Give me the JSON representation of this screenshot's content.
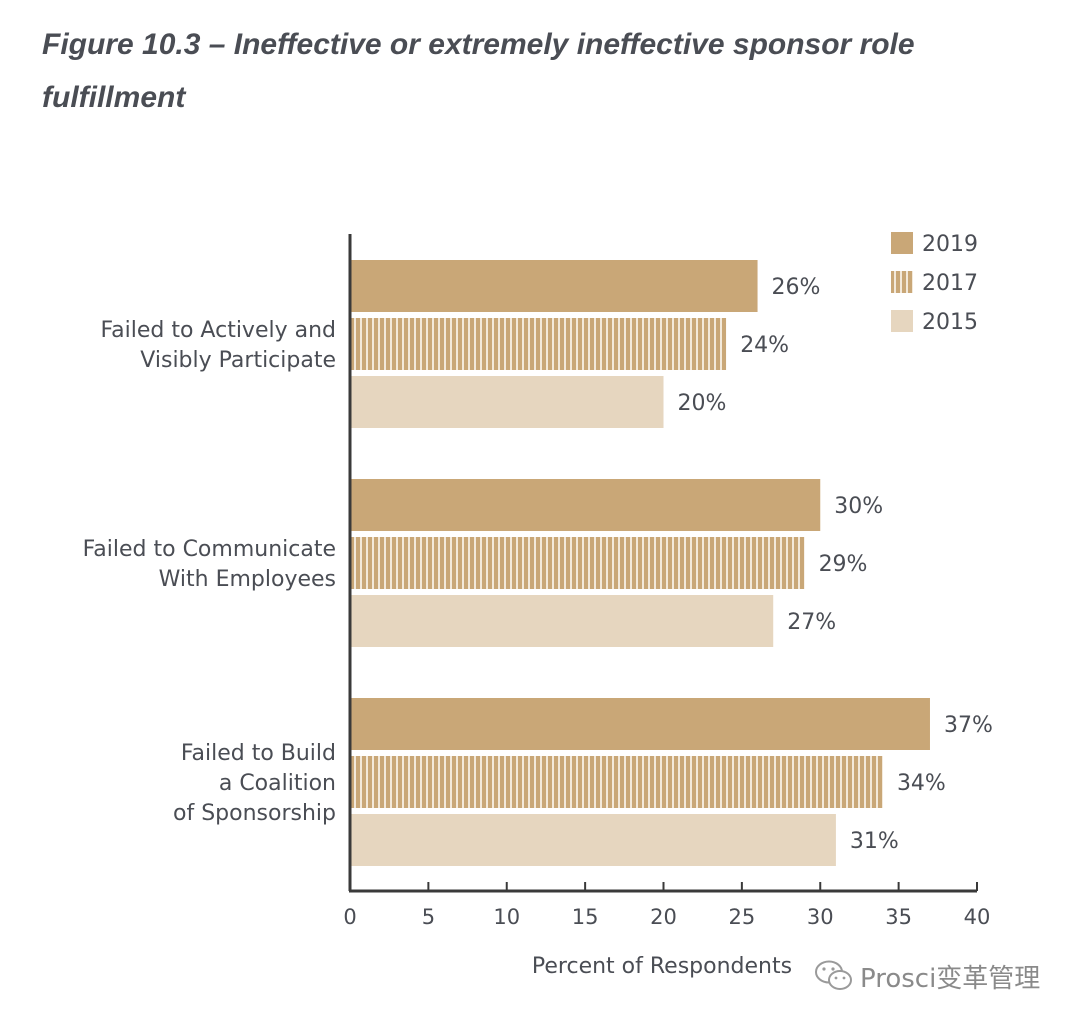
{
  "figure": {
    "title": "Figure 10.3 – Ineffective or extremely ineffective sponsor role fulfillment"
  },
  "colors": {
    "2019": "#c9a777",
    "2017": "#c9a777",
    "2015": "#e6d6bf",
    "axis": "#3a3a3a",
    "text": "#4a4d54"
  },
  "chart_data": {
    "type": "bar",
    "orientation": "horizontal",
    "categories": [
      "Failed to Actively and Visibly Participate",
      "Failed to Communicate With Employees",
      "Failed to Build a Coalition of Sponsorship"
    ],
    "category_label_lines": [
      [
        "Failed to Actively and",
        "Visibly Participate"
      ],
      [
        "Failed to Communicate",
        "With Employees"
      ],
      [
        "Failed to Build",
        "a Coalition",
        "of Sponsorship"
      ]
    ],
    "series": [
      {
        "name": "2019",
        "values": [
          26,
          30,
          37
        ],
        "labels": [
          "26%",
          "30%",
          "37%"
        ],
        "pattern": "solid"
      },
      {
        "name": "2017",
        "values": [
          24,
          29,
          34
        ],
        "labels": [
          "24%",
          "29%",
          "34%"
        ],
        "pattern": "vertical-stripes"
      },
      {
        "name": "2015",
        "values": [
          20,
          27,
          31
        ],
        "labels": [
          "20%",
          "27%",
          "31%"
        ],
        "pattern": "solid-light"
      }
    ],
    "xlabel": "Percent of Respondents",
    "xlim": [
      0,
      40
    ],
    "xticks": [
      0,
      5,
      10,
      15,
      20,
      25,
      30,
      35,
      40
    ],
    "grid": false,
    "legend_position": "top-right"
  },
  "watermark": {
    "text": "Prosci变革管理",
    "icon": "wechat-icon"
  }
}
